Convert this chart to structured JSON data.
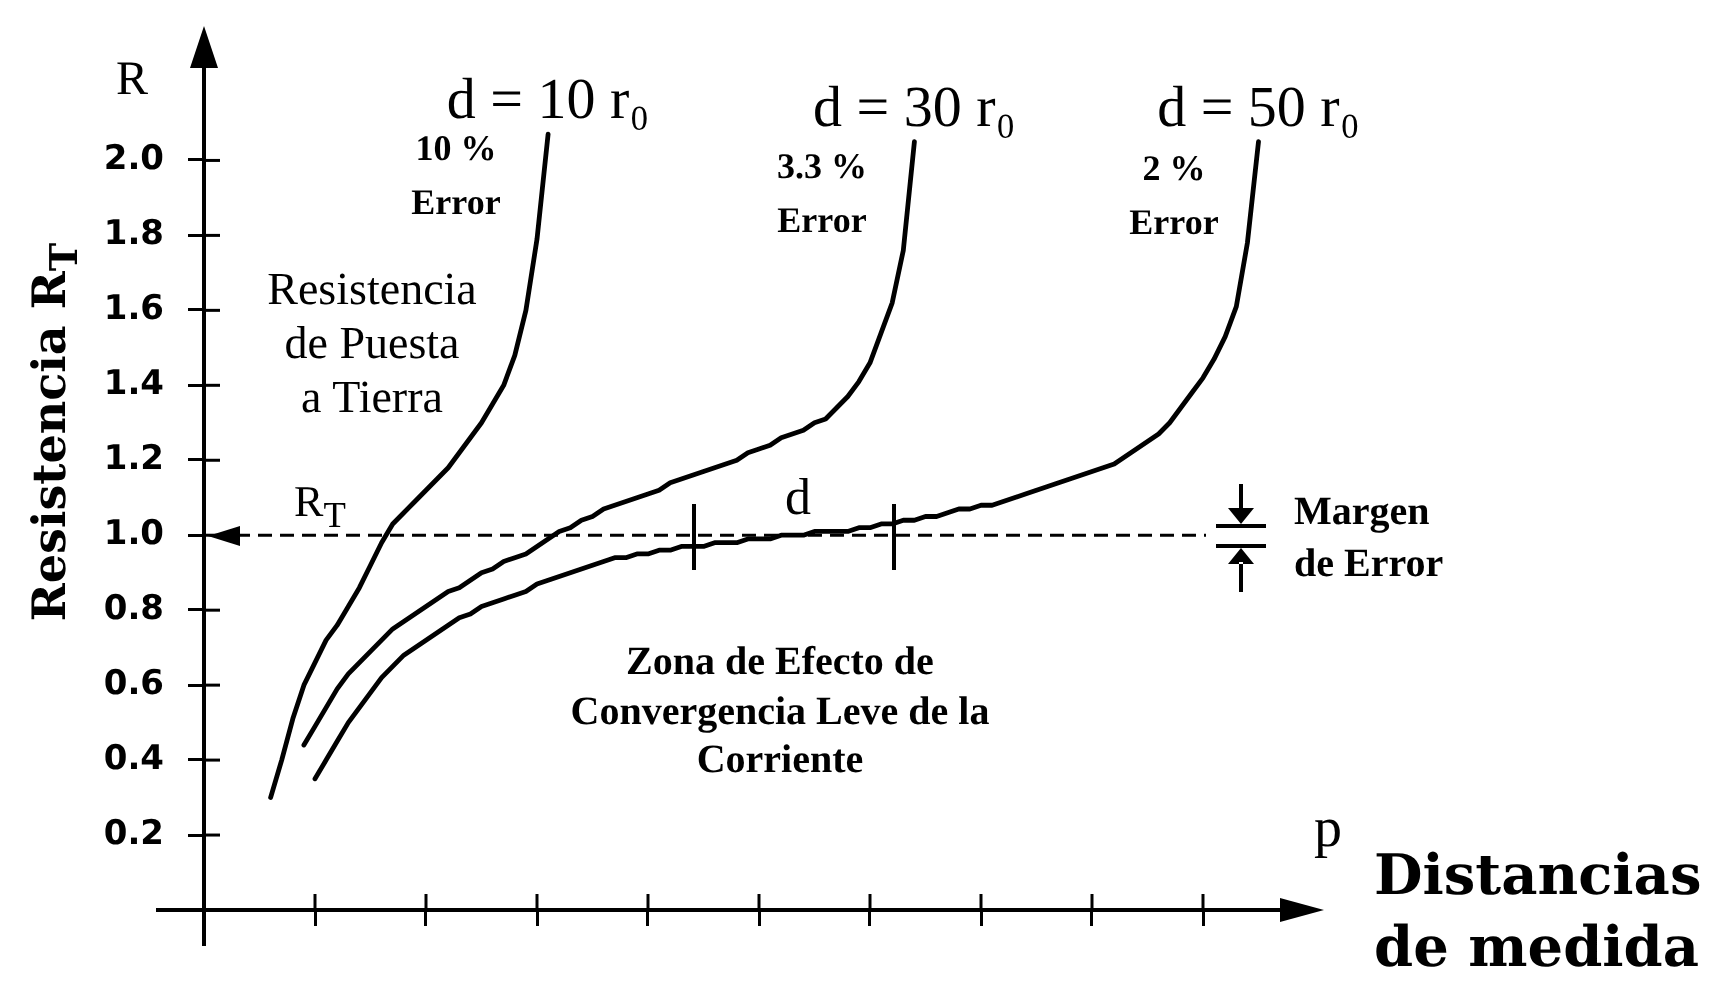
{
  "chart_data": {
    "type": "line",
    "ylabel": "Resistencia R$_{T}$",
    "annotations": [
      "R",
      "10 %\nError",
      "3.3 %\nError",
      "2 %\nError",
      "Resistencia\nde Puesta\na Tierra",
      "d",
      "Margen\nde Error",
      "Zona de Efecto de\nConvergencia Leve de la\nCorriente",
      "p",
      "Distancias\nde medida"
    ],
    "categories": [
      null,
      null,
      null,
      null,
      null,
      null,
      null,
      null,
      null,
      null,
      null,
      null,
      null,
      null,
      null,
      null,
      null,
      null,
      null,
      null,
      null,
      null,
      null,
      null,
      null,
      null,
      null,
      null,
      null,
      null,
      null,
      null,
      null,
      null,
      null,
      null,
      null,
      null,
      null,
      null,
      null,
      null,
      null,
      null,
      null,
      null,
      null,
      null,
      null,
      null,
      null,
      null,
      null,
      null,
      null,
      null,
      null,
      null,
      null,
      null,
      null,
      null,
      null,
      null,
      null,
      null,
      null,
      null,
      null,
      null,
      null,
      null,
      null,
      null,
      null,
      null,
      null,
      null,
      null,
      null,
      null,
      null,
      null,
      null,
      null,
      null,
      null,
      null,
      null,
      null,
      null,
      null,
      null,
      null,
      null,
      null,
      null,
      null,
      null,
      null,
      null
    ],
    "series": [
      {
        "name": "d = 10 r₀",
        "color": "#000000",
        "values": [
          null,
          null,
          null,
          null,
          null,
          null,
          0.3,
          0.4,
          0.51,
          0.6,
          0.66,
          0.72,
          0.76,
          0.81,
          0.86,
          0.92,
          0.98,
          1.03,
          1.06,
          1.09,
          1.12,
          1.15,
          1.18,
          1.22,
          1.26,
          1.3,
          1.35,
          1.4,
          1.48,
          1.6,
          1.79,
          2.07,
          null,
          null,
          null,
          null,
          null,
          null,
          null,
          null,
          null,
          null,
          null,
          null,
          null,
          null,
          null,
          null,
          null,
          null,
          null,
          null,
          null,
          null,
          null,
          null,
          null,
          null,
          null,
          null,
          null,
          null,
          null,
          null,
          null,
          null,
          null,
          null,
          null,
          null,
          null,
          null,
          null,
          null,
          null,
          null,
          null,
          null,
          null,
          null,
          null,
          null,
          null,
          null,
          null,
          null,
          null,
          null,
          null,
          null,
          null,
          null,
          null,
          null,
          null,
          null,
          null,
          null,
          null,
          null,
          null
        ]
      },
      {
        "name": "d = 30 r₀",
        "color": "#000000",
        "values": [
          null,
          null,
          null,
          null,
          null,
          null,
          null,
          null,
          null,
          0.44,
          0.49,
          0.54,
          0.59,
          0.63,
          0.66,
          0.69,
          0.72,
          0.75,
          0.77,
          0.79,
          0.81,
          0.83,
          0.85,
          0.86,
          0.88,
          0.9,
          0.91,
          0.93,
          0.94,
          0.95,
          0.97,
          0.99,
          1.01,
          1.02,
          1.04,
          1.05,
          1.07,
          1.08,
          1.09,
          1.1,
          1.11,
          1.12,
          1.14,
          1.15,
          1.16,
          1.17,
          1.18,
          1.19,
          1.2,
          1.22,
          1.23,
          1.24,
          1.26,
          1.27,
          1.28,
          1.3,
          1.31,
          1.34,
          1.37,
          1.41,
          1.46,
          1.54,
          1.62,
          1.76,
          2.05,
          null,
          null,
          null,
          null,
          null,
          null,
          null,
          null,
          null,
          null,
          null,
          null,
          null,
          null,
          null,
          null,
          null,
          null,
          null,
          null,
          null,
          null,
          null,
          null,
          null,
          null,
          null,
          null,
          null,
          null,
          null,
          null,
          null,
          null,
          null,
          null
        ]
      },
      {
        "name": "d = 50 r₀",
        "color": "#000000",
        "values": [
          null,
          null,
          null,
          null,
          null,
          null,
          null,
          null,
          null,
          null,
          0.35,
          0.4,
          0.45,
          0.5,
          0.54,
          0.58,
          0.62,
          0.65,
          0.68,
          0.7,
          0.72,
          0.74,
          0.76,
          0.78,
          0.79,
          0.81,
          0.82,
          0.83,
          0.84,
          0.85,
          0.87,
          0.88,
          0.89,
          0.9,
          0.91,
          0.92,
          0.93,
          0.94,
          0.94,
          0.95,
          0.95,
          0.96,
          0.96,
          0.97,
          0.97,
          0.97,
          0.98,
          0.98,
          0.98,
          0.99,
          0.99,
          0.99,
          1,
          1,
          1,
          1.01,
          1.01,
          1.01,
          1.01,
          1.02,
          1.02,
          1.03,
          1.03,
          1.04,
          1.04,
          1.05,
          1.05,
          1.06,
          1.07,
          1.07,
          1.08,
          1.08,
          1.09,
          1.1,
          1.11,
          1.12,
          1.13,
          1.14,
          1.15,
          1.16,
          1.17,
          1.18,
          1.19,
          1.21,
          1.23,
          1.25,
          1.27,
          1.3,
          1.34,
          1.38,
          1.42,
          1.47,
          1.53,
          1.61,
          1.78,
          2.05,
          null,
          null,
          null,
          null,
          null
        ]
      }
    ],
    "ylim": [
      0,
      2.3
    ],
    "yticks": [
      0.2,
      0.4,
      0.6,
      0.8,
      {
        "value": 1,
        "label": "1.0"
      },
      1.2,
      1.4,
      1.6,
      1.8,
      {
        "value": 2,
        "label": "2.0"
      }
    ],
    "ref_lines": [
      {
        "axis": "y",
        "value": 1,
        "label": "R$_{T}$",
        "line_style": "dashed",
        "color": "#000000"
      }
    ],
    "tick_labels": "y"
  }
}
